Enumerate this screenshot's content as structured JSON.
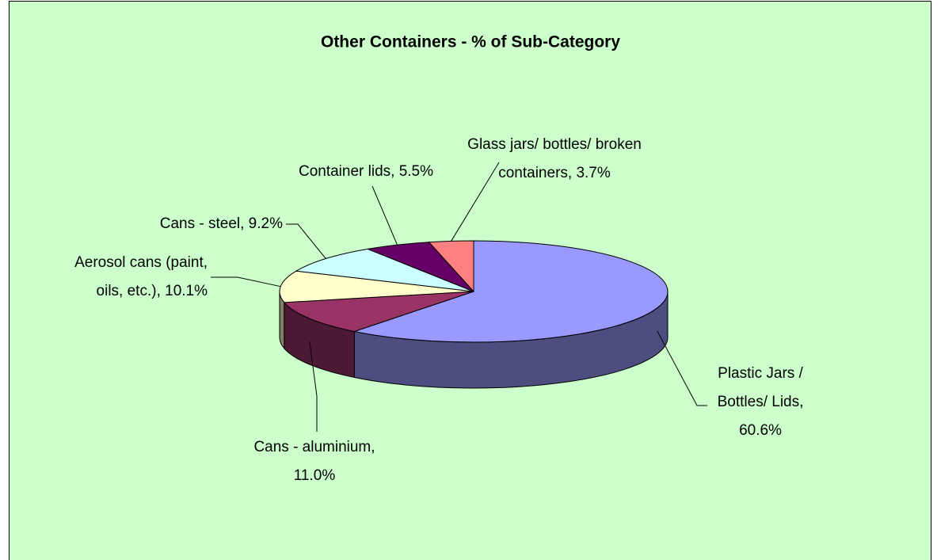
{
  "chart_data": {
    "type": "pie3d",
    "title": "Other Containers - % of Sub-Category",
    "values": [
      60.6,
      11.0,
      10.1,
      9.2,
      5.5,
      3.7
    ],
    "value_labels": [
      "Plastic Jars / Bottles/ Lids, 60.6%",
      "Cans - aluminium, 11.0%",
      "Aerosol cans (paint, oils, etc.), 10.1%",
      "Cans - steel, 9.2%",
      "Container lids, 5.5%",
      "Glass jars/ bottles/ broken containers, 3.7%"
    ],
    "colors": [
      "#9999ff",
      "#993366",
      "#ffffcc",
      "#ccffff",
      "#660066",
      "#ff8080"
    ]
  }
}
